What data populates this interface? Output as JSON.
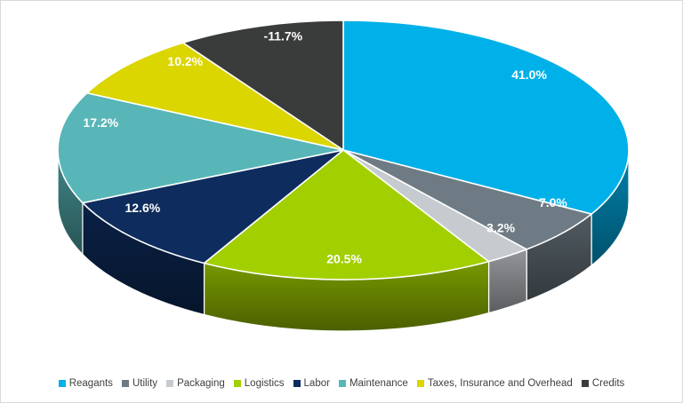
{
  "chart_data": {
    "type": "pie",
    "projection": "3d",
    "title": "",
    "categories": [
      "Reagants",
      "Utility",
      "Packaging",
      "Logistics",
      "Labor",
      "Maintenance",
      "Taxes, Insurance and Overhead",
      "Credits"
    ],
    "values": [
      41.0,
      7.0,
      3.2,
      20.5,
      12.6,
      17.2,
      10.2,
      -11.7
    ],
    "data_labels": [
      "41.0%",
      "7.0%",
      "3.2%",
      "20.5%",
      "12.6%",
      "17.2%",
      "10.2%",
      "-11.7%"
    ],
    "colors": [
      "#00B0E8",
      "#6E7B84",
      "#C6CBD0",
      "#A2CF00",
      "#0E2D5E",
      "#58B6B8",
      "#DBD500",
      "#3A3C3B"
    ],
    "start_angle_deg": 0,
    "direction": "clockwise",
    "angle_basis": "slice angles proportional to absolute values (total 123.4)",
    "legend_position": "bottom",
    "label_color": "#FFFFFF",
    "legend_text_color": "#3F3F3F",
    "background_color": "#FFFFFF",
    "frame_border_color": "#D9D9D9"
  }
}
